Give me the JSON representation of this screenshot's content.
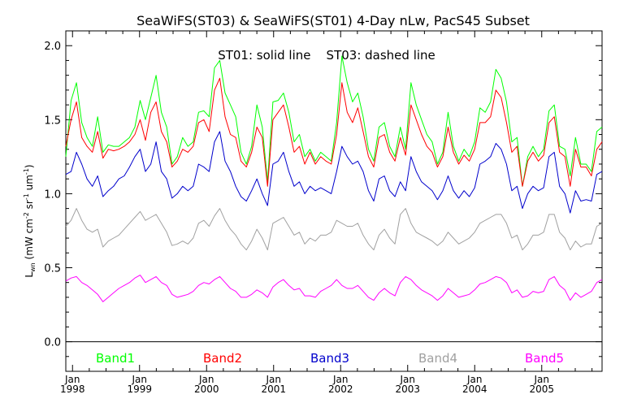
{
  "chart_data": {
    "type": "line",
    "title": "SeaWiFS(ST03) & SeaWiFS(ST01) 4-Day nLw, PacS45 Subset",
    "annotation": "ST01: solid line    ST03: dashed line",
    "ylabel": {
      "main": "L",
      "sub": "wn",
      "unit_open": " (mW cm",
      "exp1": "-2",
      "mid1": " sr",
      "exp2": "-1",
      "mid2": " um",
      "exp3": "-1",
      "close": ")"
    },
    "xlim": [
      1997.9,
      2005.9
    ],
    "ylim": [
      -0.2,
      2.1
    ],
    "yticks": [
      0.0,
      0.5,
      1.0,
      1.5,
      2.0
    ],
    "ytick_labels": [
      "0.0",
      "0.5",
      "1.0",
      "1.5",
      "2.0"
    ],
    "xticks": [
      {
        "at": 1998,
        "month": "Jan",
        "year": "1998"
      },
      {
        "at": 1999,
        "month": "Jan",
        "year": "1999"
      },
      {
        "at": 2000,
        "month": "Jan",
        "year": "2000"
      },
      {
        "at": 2001,
        "month": "Jan",
        "year": "2001"
      },
      {
        "at": 2002,
        "month": "Jan",
        "year": "2002"
      },
      {
        "at": 2003,
        "month": "Jan",
        "year": "2003"
      },
      {
        "at": 2004,
        "month": "Jan",
        "year": "2004"
      },
      {
        "at": 2005,
        "month": "Jan",
        "year": "2005"
      }
    ],
    "grid": false,
    "legend_position": "bottom, inside plot below zero line",
    "series": [
      {
        "name": "Band1",
        "color": "#00ff00",
        "values": [
          1.25,
          1.63,
          1.75,
          1.48,
          1.38,
          1.32,
          1.52,
          1.28,
          1.33,
          1.32,
          1.32,
          1.35,
          1.38,
          1.45,
          1.63,
          1.5,
          1.65,
          1.8,
          1.55,
          1.45,
          1.2,
          1.25,
          1.38,
          1.32,
          1.35,
          1.55,
          1.56,
          1.52,
          1.85,
          1.9,
          1.68,
          1.6,
          1.52,
          1.28,
          1.2,
          1.32,
          1.6,
          1.45,
          1.08,
          1.62,
          1.63,
          1.68,
          1.55,
          1.35,
          1.4,
          1.25,
          1.3,
          1.22,
          1.28,
          1.25,
          1.22,
          1.48,
          1.93,
          1.75,
          1.62,
          1.68,
          1.52,
          1.3,
          1.22,
          1.45,
          1.48,
          1.32,
          1.25,
          1.45,
          1.3,
          1.75,
          1.6,
          1.5,
          1.4,
          1.35,
          1.2,
          1.28,
          1.55,
          1.32,
          1.22,
          1.3,
          1.25,
          1.35,
          1.58,
          1.55,
          1.62,
          1.84,
          1.78,
          1.62,
          1.35,
          1.38,
          1.05,
          1.25,
          1.32,
          1.25,
          1.3,
          1.56,
          1.6,
          1.32,
          1.3,
          1.12,
          1.38,
          1.2,
          1.2,
          1.15,
          1.42,
          1.45
        ]
      },
      {
        "name": "Band2",
        "color": "#ff0000",
        "values": [
          1.32,
          1.5,
          1.62,
          1.38,
          1.32,
          1.28,
          1.42,
          1.24,
          1.3,
          1.29,
          1.3,
          1.32,
          1.35,
          1.4,
          1.5,
          1.36,
          1.55,
          1.62,
          1.42,
          1.35,
          1.18,
          1.22,
          1.3,
          1.28,
          1.32,
          1.48,
          1.5,
          1.42,
          1.7,
          1.78,
          1.52,
          1.4,
          1.38,
          1.22,
          1.18,
          1.28,
          1.45,
          1.38,
          1.05,
          1.5,
          1.55,
          1.6,
          1.45,
          1.28,
          1.32,
          1.2,
          1.28,
          1.2,
          1.25,
          1.22,
          1.2,
          1.4,
          1.75,
          1.55,
          1.48,
          1.58,
          1.42,
          1.25,
          1.18,
          1.38,
          1.4,
          1.28,
          1.22,
          1.38,
          1.26,
          1.6,
          1.5,
          1.4,
          1.32,
          1.28,
          1.18,
          1.25,
          1.45,
          1.28,
          1.2,
          1.26,
          1.22,
          1.3,
          1.48,
          1.48,
          1.52,
          1.7,
          1.65,
          1.48,
          1.28,
          1.32,
          1.05,
          1.22,
          1.28,
          1.22,
          1.26,
          1.48,
          1.52,
          1.28,
          1.25,
          1.05,
          1.3,
          1.18,
          1.18,
          1.12,
          1.3,
          1.35
        ]
      },
      {
        "name": "Band3",
        "color": "#0000cc",
        "values": [
          1.13,
          1.15,
          1.28,
          1.2,
          1.1,
          1.05,
          1.12,
          0.98,
          1.02,
          1.05,
          1.1,
          1.12,
          1.18,
          1.25,
          1.3,
          1.15,
          1.2,
          1.35,
          1.15,
          1.1,
          0.97,
          1.0,
          1.05,
          1.02,
          1.05,
          1.2,
          1.18,
          1.15,
          1.35,
          1.42,
          1.22,
          1.15,
          1.05,
          0.98,
          0.95,
          1.02,
          1.1,
          1.0,
          0.92,
          1.2,
          1.22,
          1.28,
          1.15,
          1.05,
          1.08,
          1.0,
          1.05,
          1.02,
          1.04,
          1.02,
          1.0,
          1.15,
          1.32,
          1.25,
          1.2,
          1.22,
          1.15,
          1.02,
          0.95,
          1.1,
          1.12,
          1.02,
          0.98,
          1.08,
          1.02,
          1.25,
          1.15,
          1.08,
          1.05,
          1.02,
          0.96,
          1.02,
          1.12,
          1.02,
          0.97,
          1.02,
          0.98,
          1.04,
          1.2,
          1.22,
          1.25,
          1.34,
          1.3,
          1.2,
          1.02,
          1.05,
          0.9,
          1.0,
          1.05,
          1.02,
          1.04,
          1.25,
          1.28,
          1.05,
          1.0,
          0.87,
          1.02,
          0.95,
          0.96,
          0.95,
          1.13,
          1.15
        ]
      },
      {
        "name": "Band4",
        "color": "#a0a0a0",
        "values": [
          0.78,
          0.82,
          0.9,
          0.82,
          0.76,
          0.74,
          0.76,
          0.64,
          0.68,
          0.7,
          0.72,
          0.76,
          0.8,
          0.84,
          0.88,
          0.82,
          0.84,
          0.86,
          0.8,
          0.74,
          0.65,
          0.66,
          0.68,
          0.66,
          0.7,
          0.8,
          0.82,
          0.78,
          0.85,
          0.9,
          0.82,
          0.76,
          0.72,
          0.66,
          0.62,
          0.68,
          0.76,
          0.7,
          0.62,
          0.8,
          0.82,
          0.84,
          0.78,
          0.72,
          0.74,
          0.66,
          0.7,
          0.68,
          0.72,
          0.72,
          0.74,
          0.82,
          0.8,
          0.78,
          0.78,
          0.8,
          0.72,
          0.66,
          0.62,
          0.72,
          0.76,
          0.7,
          0.66,
          0.86,
          0.9,
          0.8,
          0.74,
          0.72,
          0.7,
          0.68,
          0.65,
          0.68,
          0.74,
          0.7,
          0.66,
          0.68,
          0.7,
          0.74,
          0.8,
          0.82,
          0.84,
          0.86,
          0.86,
          0.8,
          0.7,
          0.72,
          0.62,
          0.66,
          0.72,
          0.72,
          0.74,
          0.86,
          0.86,
          0.74,
          0.7,
          0.62,
          0.68,
          0.64,
          0.66,
          0.66,
          0.78,
          0.8
        ]
      },
      {
        "name": "Band5",
        "color": "#ff00ff",
        "values": [
          0.41,
          0.43,
          0.44,
          0.4,
          0.38,
          0.35,
          0.32,
          0.27,
          0.3,
          0.33,
          0.36,
          0.38,
          0.4,
          0.43,
          0.45,
          0.4,
          0.42,
          0.44,
          0.4,
          0.38,
          0.32,
          0.3,
          0.31,
          0.32,
          0.34,
          0.38,
          0.4,
          0.39,
          0.42,
          0.44,
          0.4,
          0.36,
          0.34,
          0.3,
          0.3,
          0.32,
          0.35,
          0.33,
          0.3,
          0.37,
          0.4,
          0.42,
          0.38,
          0.35,
          0.36,
          0.31,
          0.31,
          0.3,
          0.34,
          0.36,
          0.38,
          0.42,
          0.38,
          0.36,
          0.36,
          0.38,
          0.34,
          0.3,
          0.28,
          0.33,
          0.36,
          0.33,
          0.31,
          0.4,
          0.44,
          0.42,
          0.38,
          0.35,
          0.33,
          0.31,
          0.28,
          0.31,
          0.36,
          0.33,
          0.3,
          0.31,
          0.32,
          0.35,
          0.39,
          0.4,
          0.42,
          0.44,
          0.43,
          0.4,
          0.33,
          0.35,
          0.3,
          0.31,
          0.34,
          0.33,
          0.34,
          0.42,
          0.44,
          0.38,
          0.35,
          0.28,
          0.33,
          0.3,
          0.32,
          0.34,
          0.4,
          0.42
        ]
      }
    ]
  }
}
